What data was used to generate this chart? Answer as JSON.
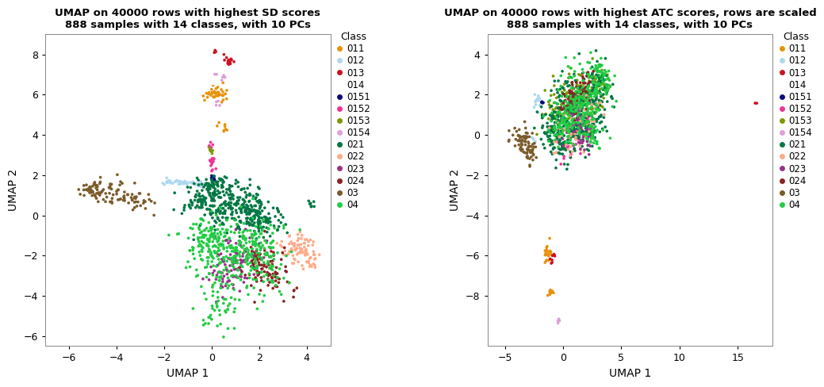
{
  "title1": "UMAP on 40000 rows with highest SD scores\n888 samples with 14 classes, with 10 PCs",
  "title2": "UMAP on 40000 rows with highest ATC scores, rows are scaled\n888 samples with 14 classes, with 10 PCs",
  "xlabel": "UMAP 1",
  "ylabel": "UMAP 2",
  "classes": [
    "011",
    "012",
    "013",
    "014",
    "0151",
    "0152",
    "0153",
    "0154",
    "021",
    "022",
    "023",
    "024",
    "03",
    "04"
  ],
  "colors": {
    "011": "#E8920A",
    "012": "#ADD8F0",
    "013": "#CC1122",
    "014": "#FFFFFF",
    "0151": "#0A0A7A",
    "0152": "#EE3399",
    "0153": "#7A9900",
    "0154": "#DDA0DD",
    "021": "#007744",
    "022": "#FFAA88",
    "023": "#993388",
    "024": "#8B2222",
    "03": "#7B5B2A",
    "04": "#22CC44"
  },
  "plot1_xlim": [
    -7,
    5
  ],
  "plot1_ylim": [
    -6.5,
    9
  ],
  "plot1_xticks": [
    -6,
    -4,
    -2,
    0,
    2,
    4
  ],
  "plot1_yticks": [
    -6,
    -4,
    -2,
    0,
    2,
    4,
    6,
    8
  ],
  "plot2_xlim": [
    -6.5,
    18
  ],
  "plot2_ylim": [
    -10.5,
    5
  ],
  "plot2_xticks": [
    -5,
    0,
    5,
    10,
    15
  ],
  "plot2_yticks": [
    -8,
    -6,
    -4,
    -2,
    0,
    2,
    4
  ]
}
